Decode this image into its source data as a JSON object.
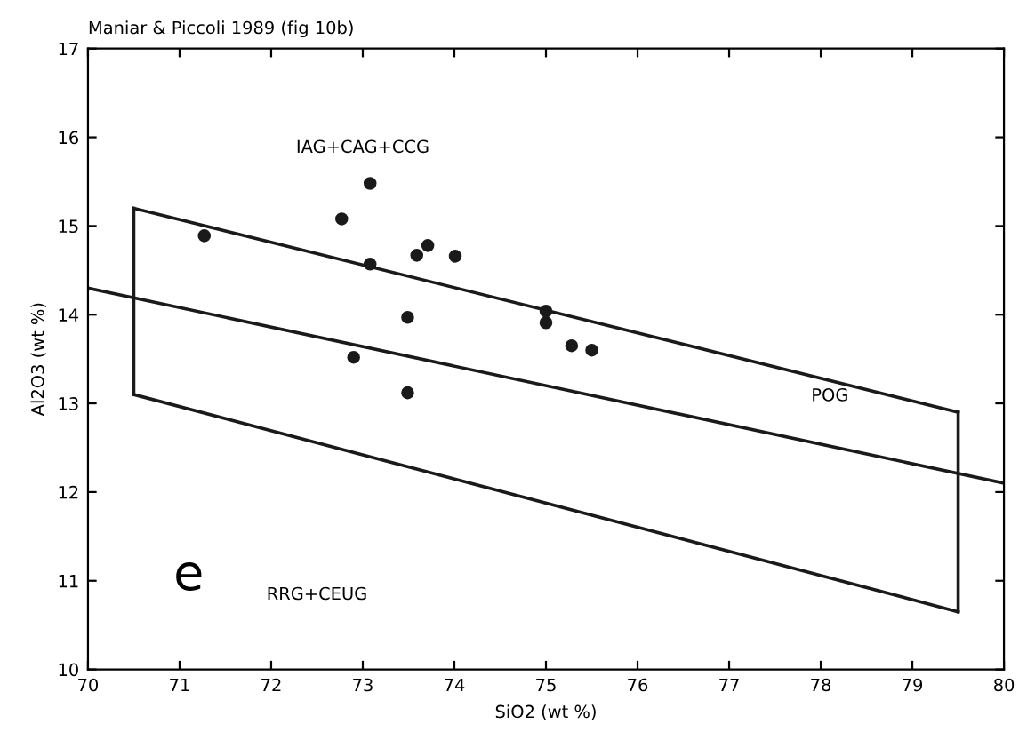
{
  "chart_data": {
    "type": "scatter",
    "title": "Maniar & Piccoli 1989 (fig 10b)",
    "xlabel": "SiO2 (wt %)",
    "ylabel": "Al2O3 (wt %)",
    "xlim": [
      70,
      80
    ],
    "xticks": [
      70,
      71,
      72,
      73,
      74,
      75,
      76,
      77,
      78,
      79,
      80
    ],
    "ylim": [
      10,
      17
    ],
    "yticks": [
      10,
      11,
      12,
      13,
      14,
      15,
      16,
      17
    ],
    "grid": false,
    "legend": false,
    "marker": "circle",
    "series": [
      {
        "color": "#1a1a1a",
        "x": [
          71.27,
          73.08,
          72.77,
          73.08,
          73.59,
          73.71,
          74.01,
          73.49,
          72.9,
          73.49,
          75.0,
          75.0,
          75.28,
          75.5
        ],
        "values": [
          14.89,
          15.48,
          15.08,
          14.57,
          14.67,
          14.78,
          14.66,
          13.97,
          13.52,
          13.12,
          14.04,
          13.91,
          13.65,
          13.6
        ]
      },
      {
        "type": "line",
        "color": "#1a1a1a",
        "line_style": "solid",
        "marker": "none",
        "x": [
          70,
          80
        ],
        "values": [
          14.3,
          12.1
        ]
      },
      {
        "type": "line",
        "color": "#1a1a1a",
        "line_style": "solid",
        "marker": "none",
        "x": [
          70.5,
          79.5
        ],
        "values": [
          15.2,
          12.9
        ]
      },
      {
        "type": "line",
        "color": "#1a1a1a",
        "line_style": "solid",
        "marker": "none",
        "x": [
          70.5,
          79.5
        ],
        "values": [
          13.1,
          10.65
        ]
      },
      {
        "type": "line",
        "color": "#1a1a1a",
        "line_style": "solid",
        "marker": "none",
        "x": [
          70.5,
          70.5
        ],
        "values": [
          13.1,
          15.2
        ]
      },
      {
        "type": "line",
        "color": "#1a1a1a",
        "line_style": "solid",
        "marker": "none",
        "x": [
          79.5,
          79.5
        ],
        "values": [
          10.65,
          12.9
        ]
      }
    ],
    "annotations": [
      "IAG+CAG+CCG",
      "POG",
      "RRG+CEUG",
      "e"
    ]
  }
}
